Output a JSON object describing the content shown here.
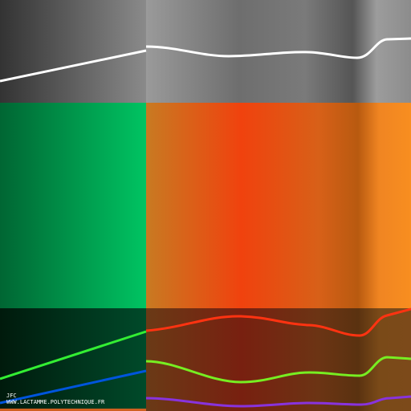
{
  "credit": {
    "author": "JFC",
    "website": "WWW.LACTAMME.POLYTECHNIQUE.FR"
  }
}
